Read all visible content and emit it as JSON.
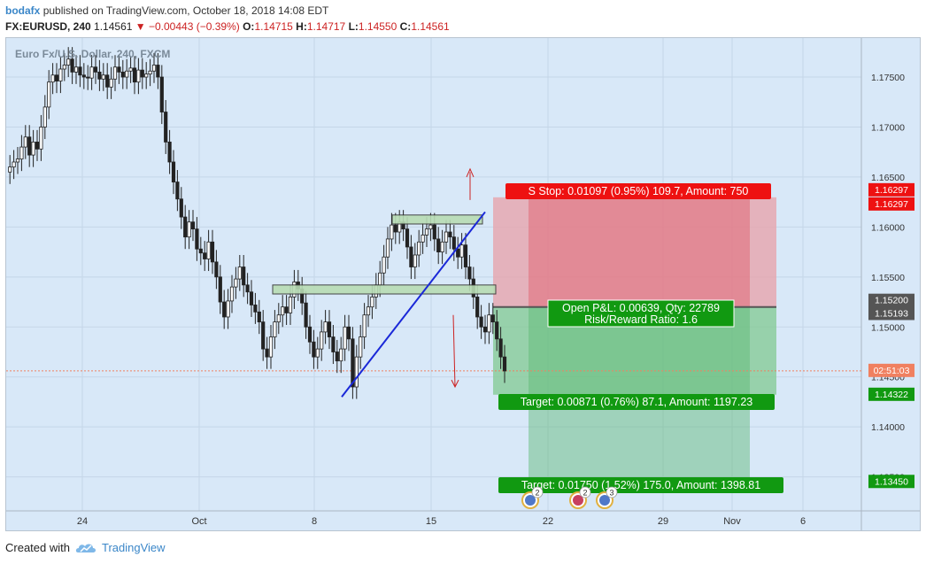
{
  "header": {
    "user": "bodafx",
    "published": "published on TradingView.com, October 18, 2018 14:08 EDT"
  },
  "symbol_line": {
    "symbol": "FX:EURUSD, 240",
    "last": "1.14561",
    "change": "▼ −0.00443 (−0.39%)",
    "o_label": "O:",
    "o": "1.14715",
    "h_label": "H:",
    "h": "1.14717",
    "l_label": "L:",
    "l": "1.14550",
    "c_label": "C:",
    "c": "1.14561"
  },
  "chart_title": "Euro Fx/U.S. Dollar, 240, FXCM",
  "footer": {
    "created_with": "Created with",
    "brand": "TradingView",
    "logo_icon": "tradingview-cloud-icon"
  },
  "colors": {
    "background": "#d8e8f8",
    "up_candle": "#ffffff",
    "down_candle": "#222222",
    "stop_zone": "#e8a0a8",
    "target_zone": "#7cc88a",
    "stop_label": "#ee1111",
    "target_label": "#119911",
    "trendline": "#1a28d8",
    "arrow": "#cc2222",
    "rect": "#b8dcb4"
  },
  "position": {
    "stop_label": "S  Stop: 0.01097 (0.95%) 109.7, Amount: 750",
    "pnl_line1": "Open P&L: 0.00639, Qty: 22789",
    "pnl_line2": "Risk/Reward Ratio: 1.6",
    "target1_label": "Target: 0.00871 (0.76%) 87.1, Amount: 1197.23",
    "target2_label": "Target: 0.01750 (1.52%) 175.0, Amount: 1398.81",
    "stop_price": 1.16297,
    "entry_price": 1.152,
    "target1_price": 1.14322,
    "target2_price": 1.1345
  },
  "event_badges": [
    {
      "count": "2",
      "icon": "eu-us-flag-icon"
    },
    {
      "count": "2",
      "icon": "eu-us-flag-icon"
    },
    {
      "count": "3",
      "icon": "eu-us-flag-icon"
    }
  ],
  "chart_data": {
    "type": "candlestick",
    "title": "Euro Fx/U.S. Dollar, 240, FXCM",
    "symbol": "EURUSD",
    "timeframe": "240",
    "x_tick_labels": [
      "24",
      "Oct",
      "8",
      "15",
      "22",
      "29",
      "Nov",
      "6"
    ],
    "y_tick_labels": [
      "1.17500",
      "1.17000",
      "1.16500",
      "1.16000",
      "1.15500",
      "1.15000",
      "1.14500",
      "1.14000",
      "1.13500"
    ],
    "y_ticks": [
      1.175,
      1.17,
      1.165,
      1.16,
      1.155,
      1.15,
      1.145,
      1.14,
      1.135
    ],
    "ylim": [
      1.1316,
      1.1789
    ],
    "price_markers": [
      {
        "label": "1.16297",
        "value": 1.16297,
        "color": "#ee1111"
      },
      {
        "label": "1.16297",
        "value": 1.16297,
        "color": "#ee1111"
      },
      {
        "label": "1.15200",
        "value": 1.152,
        "color": "#555555"
      },
      {
        "label": "1.15193",
        "value": 1.15193,
        "color": "#555555"
      },
      {
        "label": "02:51:03",
        "value": 1.14561,
        "color": "#f08060"
      },
      {
        "label": "1.14322",
        "value": 1.14322,
        "color": "#119911"
      },
      {
        "label": "1.13450",
        "value": 1.1345,
        "color": "#119911"
      }
    ],
    "last_price": 1.14561,
    "candles_close": [
      1.166,
      1.1665,
      1.1668,
      1.168,
      1.169,
      1.1672,
      1.1685,
      1.1678,
      1.17,
      1.172,
      1.1745,
      1.1752,
      1.1746,
      1.1758,
      1.1762,
      1.1768,
      1.1755,
      1.176,
      1.1752,
      1.175,
      1.1749,
      1.176,
      1.1755,
      1.1748,
      1.1752,
      1.174,
      1.1748,
      1.176,
      1.1755,
      1.175,
      1.1756,
      1.1759,
      1.1745,
      1.1757,
      1.175,
      1.1753,
      1.1756,
      1.1762,
      1.175,
      1.1715,
      1.1685,
      1.1665,
      1.1645,
      1.1628,
      1.161,
      1.159,
      1.1605,
      1.1598,
      1.1578,
      1.1574,
      1.1568,
      1.1585,
      1.1565,
      1.155,
      1.1525,
      1.151,
      1.1526,
      1.154,
      1.1548,
      1.156,
      1.1542,
      1.1535,
      1.1522,
      1.1515,
      1.1505,
      1.1478,
      1.147,
      1.149,
      1.1505,
      1.1512,
      1.152,
      1.1514,
      1.153,
      1.1545,
      1.1538,
      1.1524,
      1.15,
      1.1485,
      1.147,
      1.1478,
      1.1495,
      1.1505,
      1.149,
      1.1475,
      1.1466,
      1.1478,
      1.15,
      1.1488,
      1.144,
      1.147,
      1.149,
      1.1512,
      1.152,
      1.153,
      1.1542,
      1.1554,
      1.157,
      1.1588,
      1.1602,
      1.1595,
      1.1605,
      1.1598,
      1.158,
      1.156,
      1.1572,
      1.1585,
      1.1592,
      1.1598,
      1.1602,
      1.1588,
      1.1575,
      1.1585,
      1.1595,
      1.159,
      1.1578,
      1.157,
      1.1582,
      1.156,
      1.1548,
      1.153,
      1.151,
      1.15,
      1.1495,
      1.1512,
      1.1505,
      1.1488,
      1.147,
      1.1456
    ],
    "annotations": [
      "trendline",
      "resistance-rect-upper",
      "resistance-rect-lower",
      "arrow-up",
      "arrow-down",
      "short-position"
    ]
  }
}
